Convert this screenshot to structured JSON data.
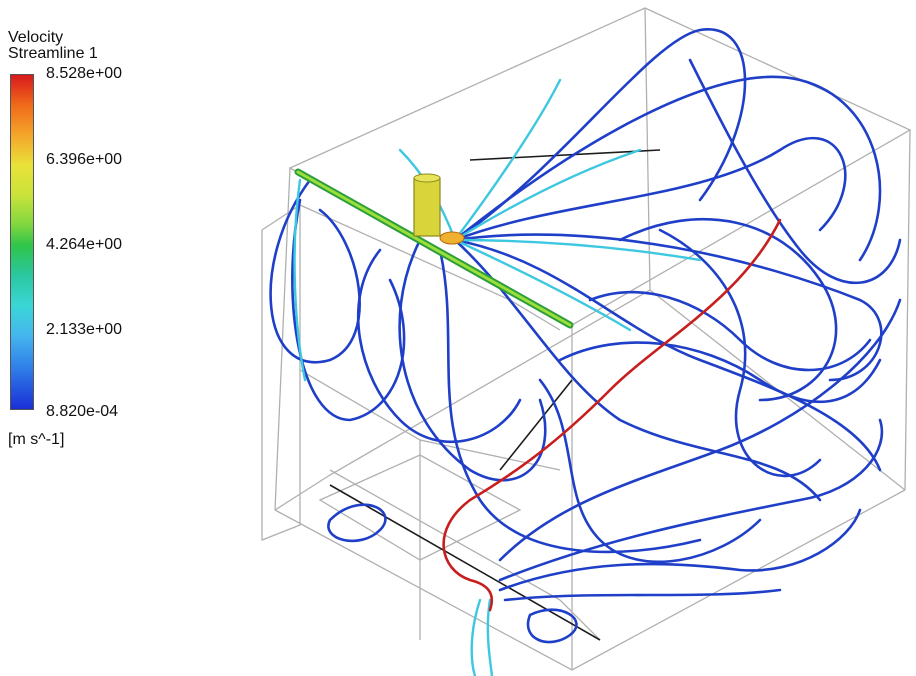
{
  "legend": {
    "variable": "Velocity",
    "object": "Streamline 1",
    "ticks": [
      "8.528e+00",
      "6.396e+00",
      "4.264e+00",
      "2.133e+00",
      "8.820e-04"
    ],
    "unit": "[m s^-1]",
    "colormap": [
      "#d7191c",
      "#f4a52a",
      "#e9e23a",
      "#2fc54a",
      "#3ad6d6",
      "#2f7de8",
      "#1a2fd6"
    ]
  },
  "colors": {
    "box_edge": "#b0b0b0",
    "dark_edge": "#1c1c1c",
    "slow_stream": "#1f3fc8",
    "fast_stream": "#c81e1e"
  }
}
